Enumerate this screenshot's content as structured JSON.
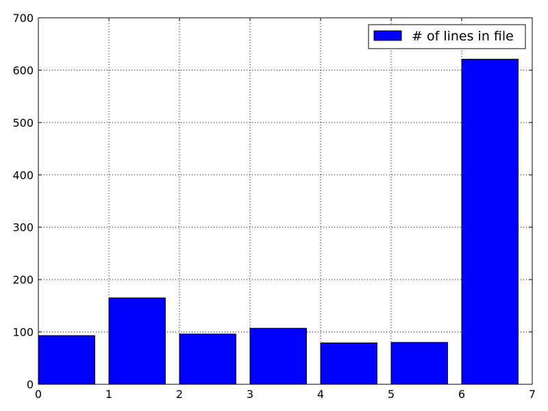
{
  "chart_data": {
    "type": "bar",
    "title": "",
    "xlabel": "",
    "ylabel": "",
    "x": [
      0,
      1,
      2,
      3,
      4,
      5,
      6
    ],
    "bar_width": 0.8,
    "series": [
      {
        "name": "# of lines in file",
        "values": [
          93,
          165,
          96,
          107,
          79,
          80,
          621
        ],
        "color": "#0000ff"
      }
    ],
    "xlim": [
      0,
      7
    ],
    "ylim": [
      0,
      700
    ],
    "xticks": [
      0,
      1,
      2,
      3,
      4,
      5,
      6,
      7
    ],
    "yticks": [
      0,
      100,
      200,
      300,
      400,
      500,
      600,
      700
    ],
    "grid": true,
    "legend_position": "top-right"
  }
}
